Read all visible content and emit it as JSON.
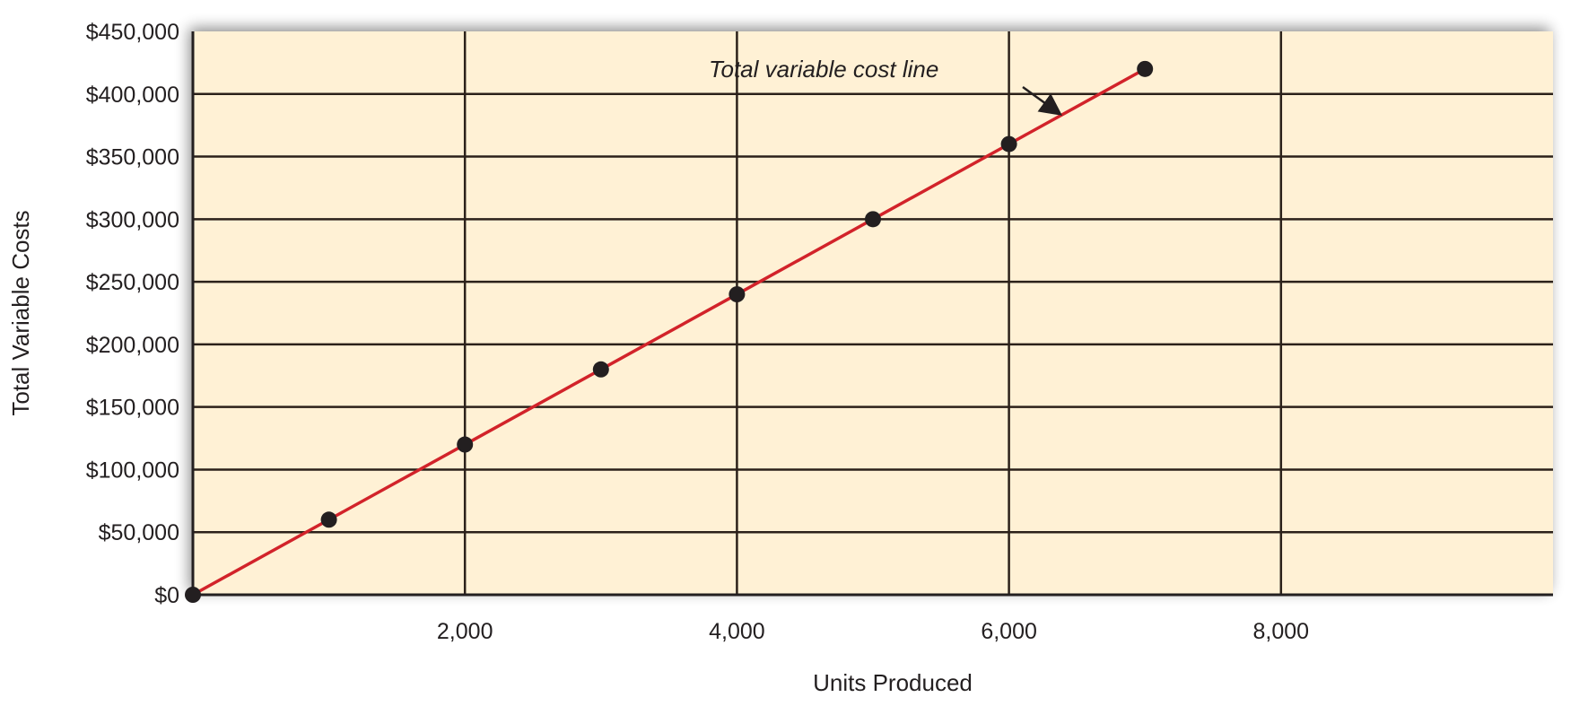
{
  "chart_data": {
    "type": "line",
    "title": "",
    "xlabel": "Units Produced",
    "ylabel": "Total Variable Costs",
    "x": [
      0,
      1000,
      2000,
      3000,
      4000,
      5000,
      6000,
      7000
    ],
    "series": [
      {
        "name": "Total variable cost line",
        "values": [
          0,
          60000,
          120000,
          180000,
          240000,
          300000,
          360000,
          420000
        ],
        "color": "#d2232a",
        "marker": "circle",
        "marker_color": "#231f20"
      }
    ],
    "xlim": [
      0,
      10000
    ],
    "ylim": [
      0,
      450000
    ],
    "x_ticks": [
      2000,
      4000,
      6000,
      8000
    ],
    "x_tick_labels": [
      "2,000",
      "4,000",
      "6,000",
      "8,000"
    ],
    "y_ticks": [
      0,
      50000,
      100000,
      150000,
      200000,
      250000,
      300000,
      350000,
      400000,
      450000
    ],
    "y_tick_labels": [
      "$0",
      "$50,000",
      "$100,000",
      "$150,000",
      "$200,000",
      "$250,000",
      "$300,000",
      "$350,000",
      "$400,000",
      "$450,000"
    ],
    "grid": true,
    "legend": "none",
    "annotations": [
      {
        "text": "Total variable cost line",
        "style": "italic",
        "arrow_to": [
          6200,
          385000
        ]
      }
    ],
    "background_color": "#fff1d5"
  }
}
